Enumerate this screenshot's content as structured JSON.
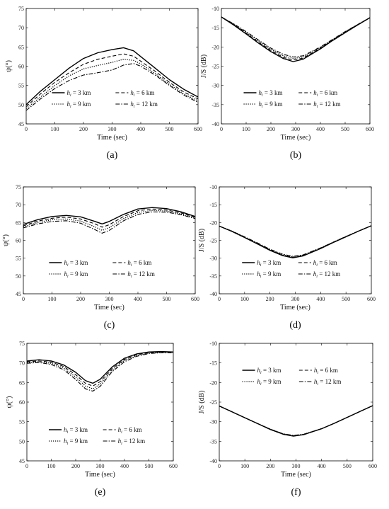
{
  "figure": {
    "series_names": [
      "h_i = 3 km",
      "h_i = 6 km",
      "h_i = 9 km",
      "h_i = 12 km"
    ]
  },
  "chart_data": [
    {
      "type": "line",
      "panel": "(a)",
      "xlabel": "Time (sec)",
      "ylabel": "ψ(°)",
      "xlim": [
        0,
        600
      ],
      "ylim": [
        45,
        75
      ],
      "xticks": [
        0,
        100,
        200,
        300,
        400,
        500,
        600
      ],
      "yticks": [
        45,
        50,
        55,
        60,
        65,
        70,
        75
      ],
      "legend": {
        "position": "lower-center",
        "entries": [
          {
            "sub": "i",
            "value": "3 km"
          },
          {
            "sub": "i",
            "value": "6 km"
          },
          {
            "sub": "i",
            "value": "9 km"
          },
          {
            "sub": "i",
            "value": "12 km"
          }
        ]
      },
      "x": [
        0,
        50,
        100,
        150,
        200,
        250,
        300,
        340,
        375,
        400,
        450,
        500,
        550,
        600
      ],
      "series": [
        {
          "name": "h_i = 3 km",
          "style": "solid",
          "values": [
            50,
            53.5,
            56.5,
            59.5,
            62,
            63.5,
            64.3,
            64.8,
            64,
            62.5,
            59.5,
            56.5,
            54,
            52
          ]
        },
        {
          "name": "h_i = 6 km",
          "style": "dashed",
          "values": [
            49.5,
            52.8,
            55.8,
            58.3,
            60.5,
            61.8,
            62.6,
            63.2,
            62.6,
            61.3,
            58.7,
            55.8,
            53.3,
            51.5
          ]
        },
        {
          "name": "h_i = 9 km",
          "style": "dotted",
          "values": [
            49,
            52,
            55,
            57.5,
            59.3,
            60.2,
            61,
            61.8,
            61.5,
            60.6,
            58.1,
            55.3,
            52.8,
            51
          ]
        },
        {
          "name": "h_i = 12 km",
          "style": "dashdot",
          "values": [
            48.5,
            51.5,
            54.2,
            56.3,
            57.7,
            58.3,
            59,
            60.3,
            60.7,
            60,
            57.7,
            55,
            52.5,
            50.6
          ]
        }
      ]
    },
    {
      "type": "line",
      "panel": "(b)",
      "xlabel": "Time (sec)",
      "ylabel": "J/S (dB)",
      "xlim": [
        0,
        600
      ],
      "ylim": [
        -40,
        -10
      ],
      "xticks": [
        0,
        100,
        200,
        300,
        400,
        500,
        600
      ],
      "yticks": [
        -40,
        -35,
        -30,
        -25,
        -20,
        -15,
        -10
      ],
      "legend": {
        "position": "lower-center",
        "entries": [
          {
            "sub": "i",
            "value": "3 km"
          },
          {
            "sub": "i",
            "value": "6 km"
          },
          {
            "sub": "i",
            "value": "9 km"
          },
          {
            "sub": "i",
            "value": "12 km"
          }
        ]
      },
      "x": [
        0,
        50,
        100,
        150,
        200,
        250,
        290,
        330,
        400,
        450,
        500,
        550,
        600
      ],
      "series": [
        {
          "name": "h_i = 3 km",
          "style": "solid",
          "values": [
            -12.2,
            -14.3,
            -16.6,
            -19,
            -21.2,
            -23,
            -23.8,
            -23.2,
            -20.5,
            -18.3,
            -16.3,
            -14.3,
            -12.4
          ]
        },
        {
          "name": "h_i = 6 km",
          "style": "dashed",
          "values": [
            -12.2,
            -14.2,
            -16.4,
            -18.8,
            -20.9,
            -22.7,
            -23.4,
            -22.9,
            -20.3,
            -18.2,
            -16.2,
            -14.2,
            -12.4
          ]
        },
        {
          "name": "h_i = 9 km",
          "style": "dotted",
          "values": [
            -12.2,
            -14.1,
            -16.2,
            -18.5,
            -20.6,
            -22.3,
            -23,
            -22.6,
            -20.1,
            -18.1,
            -16.1,
            -14.2,
            -12.4
          ]
        },
        {
          "name": "h_i = 12 km",
          "style": "dashdot",
          "values": [
            -12.2,
            -14,
            -16,
            -18.2,
            -20.3,
            -21.9,
            -22.6,
            -22.3,
            -20,
            -18,
            -16,
            -14.2,
            -12.4
          ]
        }
      ]
    },
    {
      "type": "line",
      "panel": "(c)",
      "xlabel": "Time (sec)",
      "ylabel": "ψ(°)",
      "xlim": [
        0,
        600
      ],
      "ylim": [
        45,
        75
      ],
      "xticks": [
        0,
        100,
        200,
        300,
        400,
        500,
        600
      ],
      "yticks": [
        45,
        50,
        55,
        60,
        65,
        70,
        75
      ],
      "legend": {
        "position": "lower-center",
        "entries": [
          {
            "sub": "i",
            "value": "3 km"
          },
          {
            "sub": "i",
            "value": "6 km"
          },
          {
            "sub": "i",
            "value": "9 km"
          },
          {
            "sub": "i",
            "value": "12 km"
          }
        ]
      },
      "x": [
        0,
        50,
        100,
        150,
        200,
        250,
        275,
        300,
        350,
        400,
        450,
        500,
        550,
        600
      ],
      "series": [
        {
          "name": "h_i = 3 km",
          "style": "solid",
          "values": [
            64.5,
            65.8,
            66.7,
            67,
            66.6,
            65.3,
            64.6,
            65.3,
            67.3,
            68.8,
            69.2,
            68.9,
            68,
            66.7
          ]
        },
        {
          "name": "h_i = 6 km",
          "style": "dashed",
          "values": [
            64.1,
            65.4,
            66.2,
            66.5,
            66,
            64.6,
            63.7,
            64.4,
            66.7,
            68.3,
            68.8,
            68.5,
            67.7,
            66.5
          ]
        },
        {
          "name": "h_i = 9 km",
          "style": "dotted",
          "values": [
            63.8,
            65,
            65.8,
            66,
            65.4,
            63.8,
            62.8,
            63.6,
            66.1,
            67.8,
            68.4,
            68.2,
            67.4,
            66.3
          ]
        },
        {
          "name": "h_i = 12 km",
          "style": "dashdot",
          "values": [
            63.5,
            64.6,
            65.3,
            65.5,
            64.8,
            63,
            62,
            62.8,
            65.5,
            67.3,
            68,
            67.9,
            67.2,
            66.1
          ]
        }
      ]
    },
    {
      "type": "line",
      "panel": "(d)",
      "xlabel": "Time (sec)",
      "ylabel": "J/S (dB)",
      "xlim": [
        0,
        600
      ],
      "ylim": [
        -40,
        -10
      ],
      "xticks": [
        0,
        100,
        200,
        300,
        400,
        500,
        600
      ],
      "yticks": [
        -40,
        -35,
        -30,
        -25,
        -20,
        -15,
        -10
      ],
      "legend": {
        "position": "lower-center",
        "entries": [
          {
            "sub": "i",
            "value": "3 km"
          },
          {
            "sub": "i",
            "value": "6 km"
          },
          {
            "sub": "i",
            "value": "9 km"
          },
          {
            "sub": "i",
            "value": "12 km"
          }
        ]
      },
      "x": [
        0,
        50,
        100,
        150,
        200,
        250,
        290,
        330,
        400,
        450,
        500,
        550,
        600
      ],
      "series": [
        {
          "name": "h_i = 3 km",
          "style": "solid",
          "values": [
            -21,
            -22.5,
            -24.2,
            -26,
            -27.8,
            -29.3,
            -29.9,
            -29.4,
            -27.3,
            -25.6,
            -24,
            -22.4,
            -20.9
          ]
        },
        {
          "name": "h_i = 6 km",
          "style": "dashed",
          "values": [
            -21,
            -22.5,
            -24.2,
            -25.9,
            -27.7,
            -29.2,
            -29.8,
            -29.3,
            -27.2,
            -25.6,
            -24,
            -22.4,
            -20.9
          ]
        },
        {
          "name": "h_i = 9 km",
          "style": "dotted",
          "values": [
            -21,
            -22.4,
            -24.1,
            -25.8,
            -27.6,
            -29.1,
            -29.6,
            -29.2,
            -27.2,
            -25.5,
            -23.9,
            -22.4,
            -20.9
          ]
        },
        {
          "name": "h_i = 12 km",
          "style": "dashdot",
          "values": [
            -21,
            -22.4,
            -24,
            -25.7,
            -27.5,
            -28.9,
            -29.5,
            -29.1,
            -27.1,
            -25.5,
            -23.9,
            -22.4,
            -20.9
          ]
        }
      ]
    },
    {
      "type": "line",
      "panel": "(e)",
      "xlabel": "Time (sec)",
      "ylabel": "ψ(°)",
      "xlim": [
        0,
        600
      ],
      "ylim": [
        45,
        75
      ],
      "xticks": [
        0,
        100,
        200,
        300,
        400,
        500,
        600
      ],
      "yticks": [
        45,
        50,
        55,
        60,
        65,
        70,
        75
      ],
      "legend": {
        "position": "lower-center",
        "entries": [
          {
            "sub": "i",
            "value": "3 km"
          },
          {
            "sub": "i",
            "value": "6 km"
          },
          {
            "sub": "i",
            "value": "9 km"
          },
          {
            "sub": "i",
            "value": "12 km"
          }
        ]
      },
      "x": [
        0,
        50,
        100,
        150,
        200,
        240,
        270,
        300,
        350,
        400,
        450,
        500,
        550,
        600
      ],
      "series": [
        {
          "name": "h_i = 3 km",
          "style": "solid",
          "values": [
            70.5,
            70.8,
            70.5,
            69.5,
            67.6,
            65.5,
            64.8,
            65.8,
            69,
            71.2,
            72.3,
            72.8,
            72.9,
            72.8
          ]
        },
        {
          "name": "h_i = 6 km",
          "style": "dashed",
          "values": [
            70.3,
            70.5,
            70.2,
            69.1,
            67,
            64.8,
            64.1,
            65.2,
            68.6,
            70.9,
            72.1,
            72.6,
            72.8,
            72.7
          ]
        },
        {
          "name": "h_i = 9 km",
          "style": "dotted",
          "values": [
            70.1,
            70.3,
            69.9,
            68.7,
            66.4,
            64.1,
            63.4,
            64.6,
            68.2,
            70.6,
            71.9,
            72.5,
            72.7,
            72.7
          ]
        },
        {
          "name": "h_i = 12 km",
          "style": "dashdot",
          "values": [
            69.9,
            70.1,
            69.6,
            68.3,
            65.8,
            63.4,
            62.8,
            64,
            67.8,
            70.3,
            71.7,
            72.4,
            72.6,
            72.6
          ]
        }
      ]
    },
    {
      "type": "line",
      "panel": "(f)",
      "xlabel": "Time (sec)",
      "ylabel": "J/S (dB)",
      "xlim": [
        0,
        600
      ],
      "ylim": [
        -40,
        -10
      ],
      "xticks": [
        0,
        100,
        200,
        300,
        400,
        500,
        600
      ],
      "yticks": [
        -40,
        -35,
        -30,
        -25,
        -20,
        -15,
        -10
      ],
      "legend": {
        "position": "upper-center",
        "entries": [
          {
            "sub": "i",
            "value": "3 km"
          },
          {
            "sub": "i",
            "value": "6 km"
          },
          {
            "sub": "i",
            "value": "9 km"
          },
          {
            "sub": "i",
            "value": "12 km"
          }
        ]
      },
      "x": [
        0,
        50,
        100,
        150,
        200,
        250,
        290,
        330,
        400,
        450,
        500,
        550,
        600
      ],
      "series": [
        {
          "name": "h_i = 3 km",
          "style": "solid",
          "values": [
            -26,
            -27.5,
            -29,
            -30.5,
            -32,
            -33.2,
            -33.7,
            -33.3,
            -31.8,
            -30.4,
            -28.9,
            -27.4,
            -25.9
          ]
        },
        {
          "name": "h_i = 6 km",
          "style": "dashed",
          "values": [
            -26,
            -27.5,
            -29,
            -30.5,
            -32,
            -33.2,
            -33.6,
            -33.3,
            -31.8,
            -30.4,
            -28.9,
            -27.4,
            -25.9
          ]
        },
        {
          "name": "h_i = 9 km",
          "style": "dotted",
          "values": [
            -26,
            -27.5,
            -29,
            -30.5,
            -31.9,
            -33.1,
            -33.6,
            -33.2,
            -31.8,
            -30.4,
            -28.9,
            -27.4,
            -25.9
          ]
        },
        {
          "name": "h_i = 12 km",
          "style": "dashdot",
          "values": [
            -26,
            -27.5,
            -29,
            -30.5,
            -31.9,
            -33.1,
            -33.5,
            -33.2,
            -31.8,
            -30.4,
            -28.9,
            -27.4,
            -25.9
          ]
        }
      ]
    }
  ]
}
